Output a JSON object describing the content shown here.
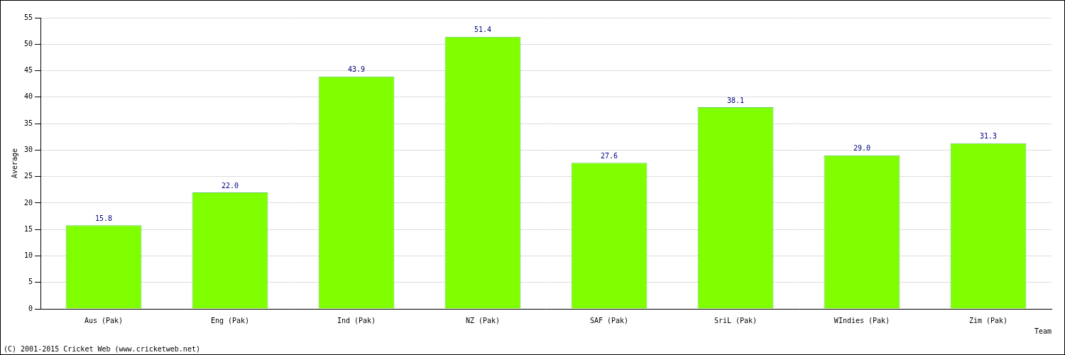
{
  "chart_data": {
    "type": "bar",
    "categories": [
      "Aus (Pak)",
      "Eng (Pak)",
      "Ind (Pak)",
      "NZ (Pak)",
      "SAF (Pak)",
      "SriL (Pak)",
      "WIndies (Pak)",
      "Zim (Pak)"
    ],
    "values": [
      15.8,
      22.0,
      43.9,
      51.4,
      27.6,
      38.1,
      29.0,
      31.3
    ],
    "value_labels": [
      "15.8",
      "22.0",
      "43.9",
      "51.4",
      "27.6",
      "38.1",
      "29.0",
      "31.3"
    ],
    "color": "#80ff00",
    "x_label": "Team",
    "y_label": "Average",
    "annotations": [
      "(C) 2001-2015 Cricket Web (www.cricketweb.net)"
    ],
    "ylim": [
      0,
      55
    ],
    "yticks": [
      0,
      5,
      10,
      15,
      20,
      25,
      30,
      35,
      40,
      45,
      50,
      55
    ],
    "grid": true,
    "data_labels": true
  }
}
